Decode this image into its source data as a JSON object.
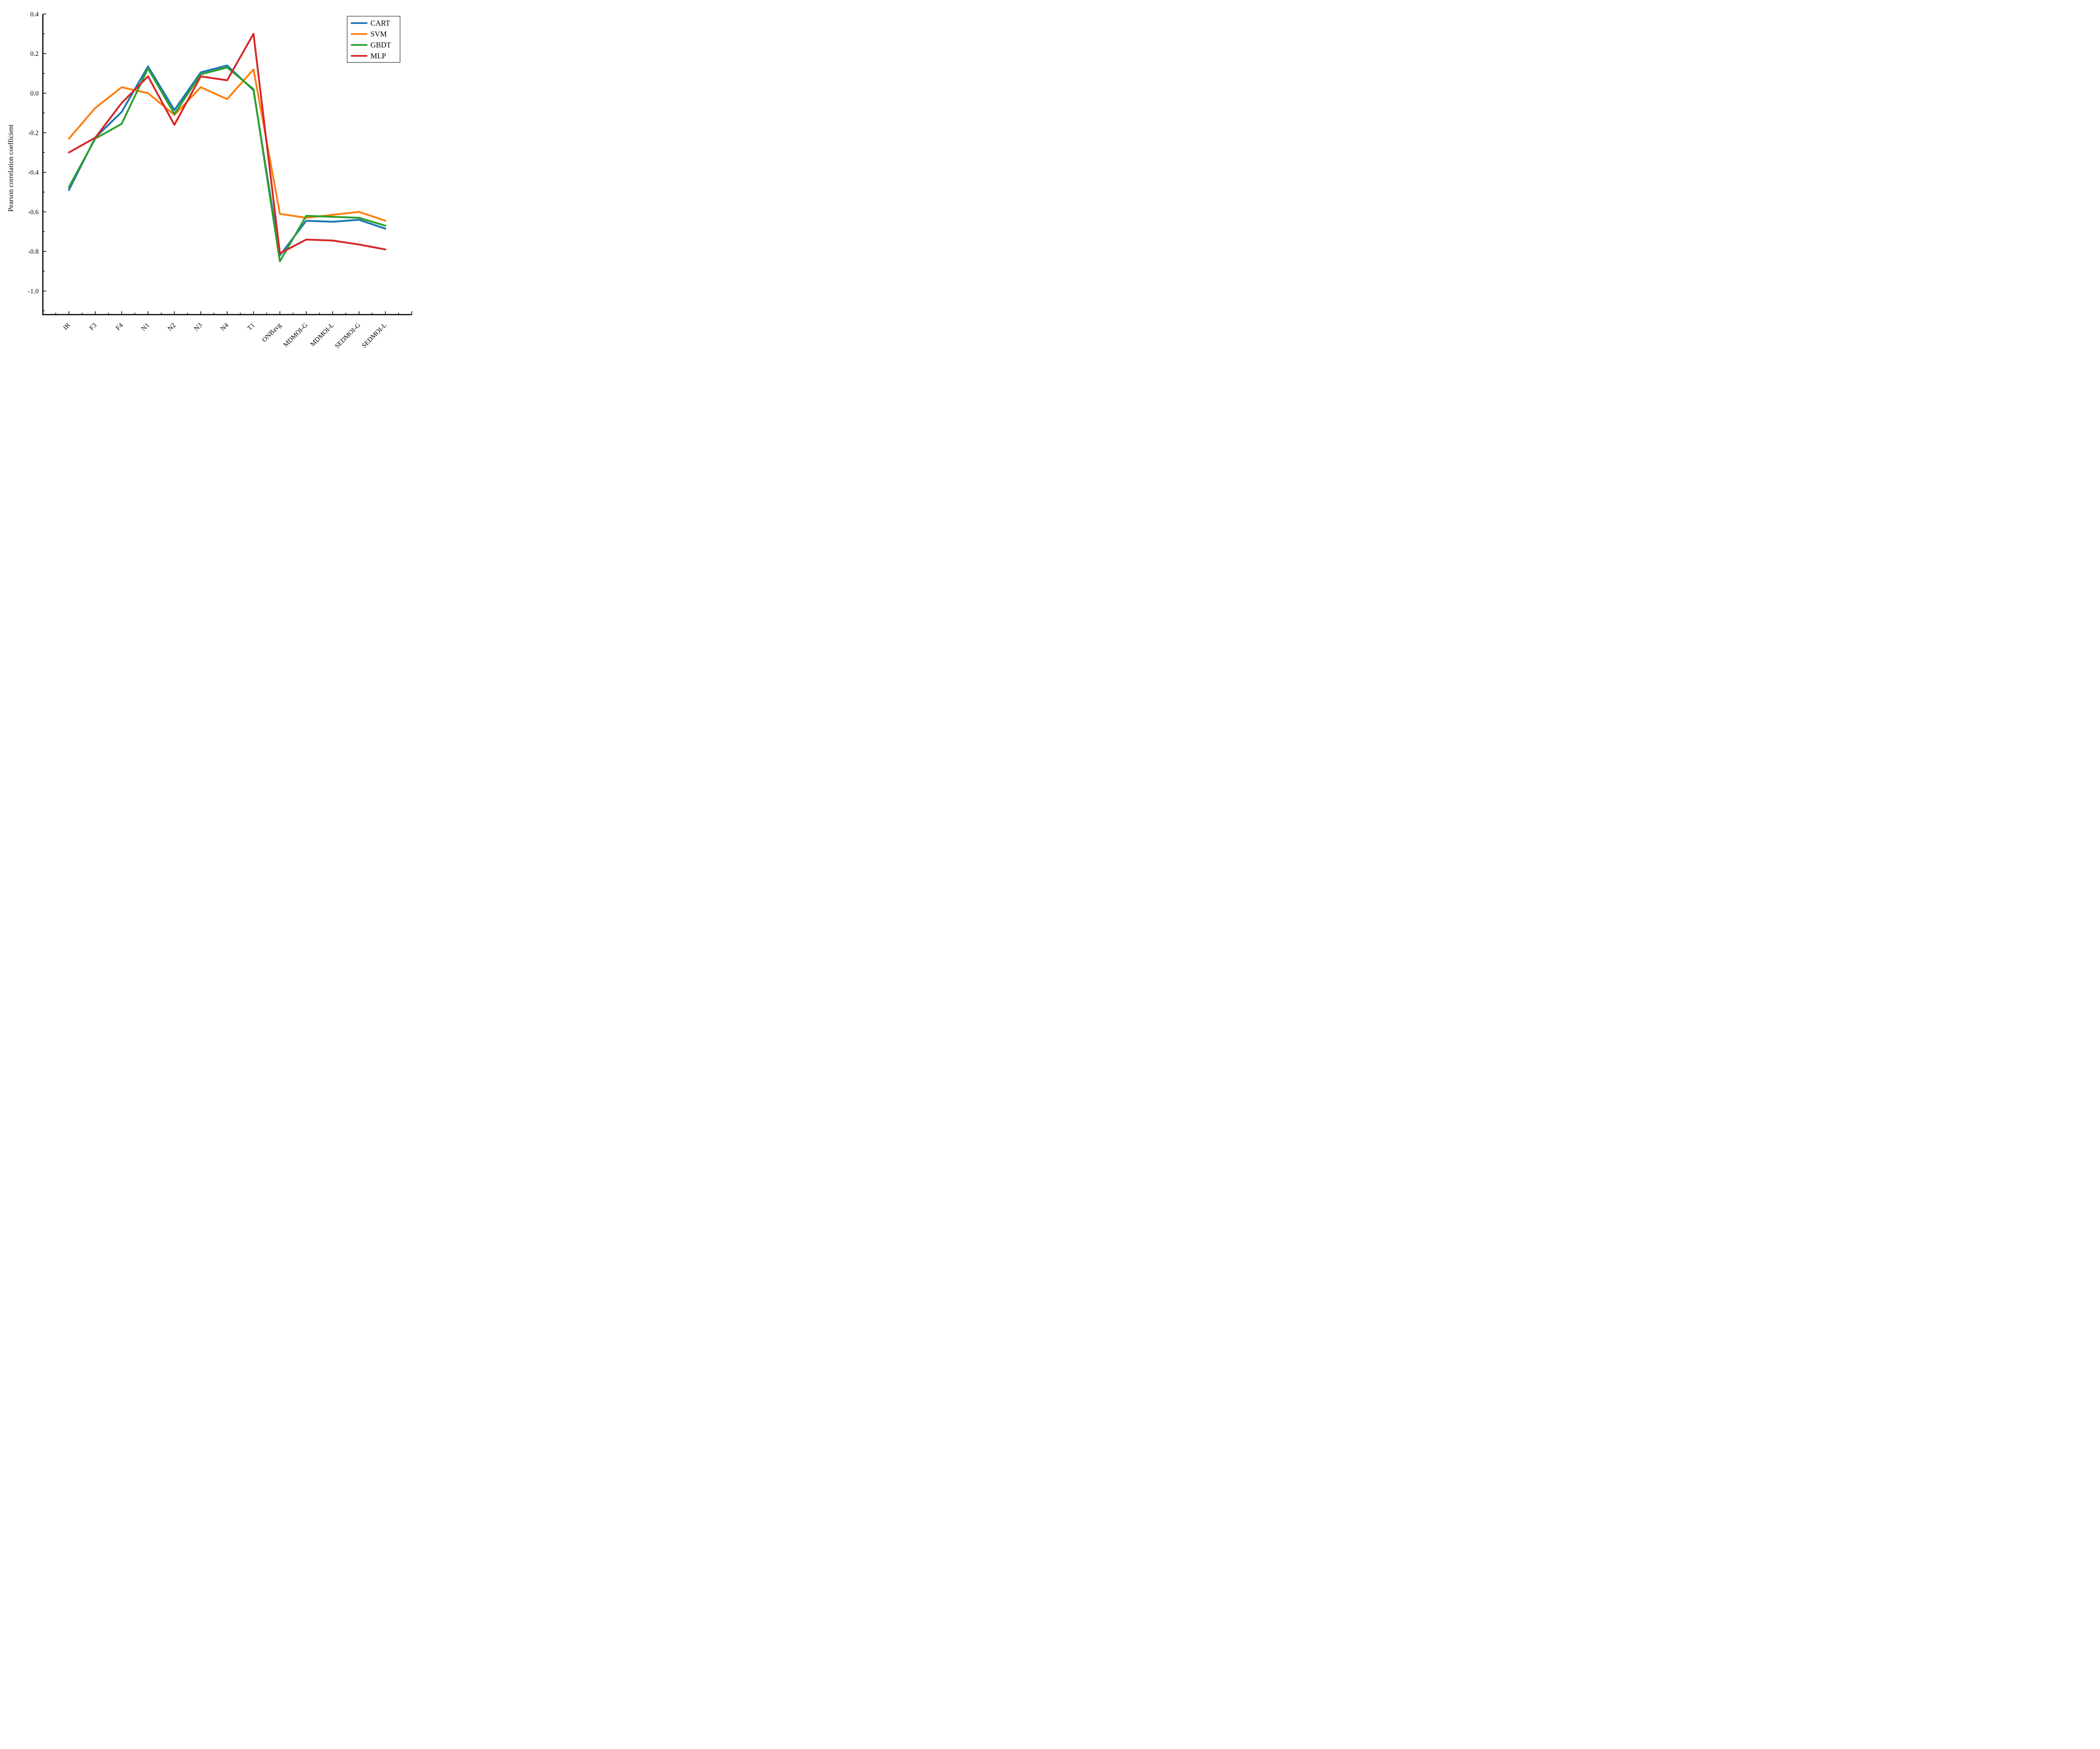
{
  "chart_data": {
    "type": "line",
    "title": "",
    "xlabel": "",
    "ylabel": "Pearson correlation coefficient",
    "categories": [
      "IR",
      "F3",
      "F4",
      "N1",
      "N2",
      "N3",
      "N4",
      "T1",
      "ONBavg",
      "MDMOI-G",
      "MDMOI-L",
      "SEDMOI-G",
      "SEDMOI-L"
    ],
    "series": [
      {
        "name": "CART",
        "color": "#1f77b4",
        "values": [
          -0.49,
          -0.225,
          -0.095,
          0.135,
          -0.085,
          0.105,
          0.14,
          0.015,
          -0.82,
          -0.645,
          -0.65,
          -0.64,
          -0.685
        ]
      },
      {
        "name": "SVM",
        "color": "#ff7f0e",
        "values": [
          -0.23,
          -0.075,
          0.03,
          0.0,
          -0.11,
          0.03,
          -0.03,
          0.12,
          -0.61,
          -0.63,
          -0.615,
          -0.6,
          -0.645
        ]
      },
      {
        "name": "GBDT",
        "color": "#2ca02c",
        "values": [
          -0.475,
          -0.23,
          -0.155,
          0.125,
          -0.105,
          0.095,
          0.13,
          0.02,
          -0.85,
          -0.62,
          -0.625,
          -0.63,
          -0.67
        ]
      },
      {
        "name": "MLP",
        "color": "#d62728",
        "values": [
          -0.3,
          -0.225,
          -0.05,
          0.085,
          -0.16,
          0.085,
          0.065,
          0.3,
          -0.81,
          -0.74,
          -0.745,
          -0.765,
          -0.79
        ]
      }
    ],
    "ylim": [
      -1.12,
      0.4
    ],
    "yticks_major": [
      0.4,
      0.2,
      0.0,
      -0.2,
      -0.4,
      -0.6,
      -0.8,
      -1.0
    ],
    "ytick_labels": [
      "0.4",
      "0.2",
      "0.0",
      "-0.2",
      "-0.4",
      "-0.6",
      "-0.8",
      "-1.0"
    ],
    "yticks_minor": [
      0.3,
      0.1,
      -0.1,
      -0.3,
      -0.5,
      -0.7,
      -0.9,
      -1.1
    ],
    "grid": false,
    "tick_direction": "in",
    "x_tick_label_rotation": 45,
    "legend_position": "top-right",
    "legend_labels": [
      "CART",
      "SVM",
      "GBDT",
      "MLP"
    ],
    "axis_color": "#000000",
    "background_color": "#ffffff"
  }
}
